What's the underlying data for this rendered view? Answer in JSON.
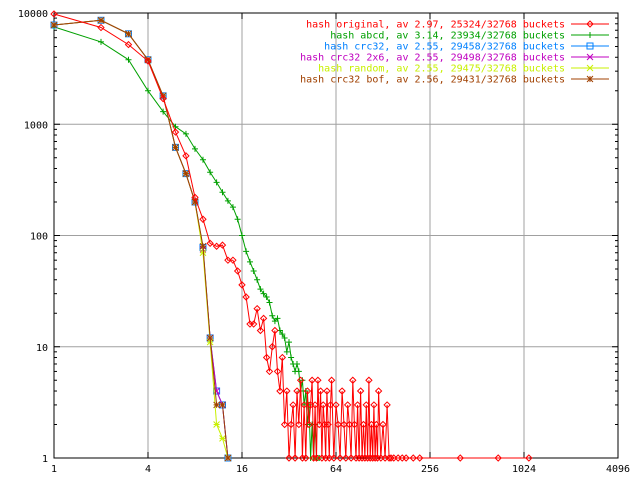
{
  "chart_data": {
    "type": "line",
    "title": "",
    "xlabel": "",
    "ylabel": "",
    "x_scale": "log2",
    "y_scale": "log10",
    "xlim": [
      1,
      4096
    ],
    "ylim": [
      1,
      10000
    ],
    "x_ticks": [
      {
        "value": 1,
        "label": "1"
      },
      {
        "value": 4,
        "label": "4"
      },
      {
        "value": 16,
        "label": "16"
      },
      {
        "value": 64,
        "label": "64"
      },
      {
        "value": 256,
        "label": "256"
      },
      {
        "value": 1024,
        "label": "1024"
      },
      {
        "value": 4096,
        "label": "4096"
      }
    ],
    "y_ticks": [
      {
        "value": 1,
        "label": "1"
      },
      {
        "value": 10,
        "label": "10"
      },
      {
        "value": 100,
        "label": "100"
      },
      {
        "value": 1000,
        "label": "1000"
      },
      {
        "value": 10000,
        "label": "10000"
      }
    ],
    "grid": true,
    "legend_position": "top-right",
    "series": [
      {
        "name": "hash original, av 2.97, 25324/32768 buckets",
        "color": "#ff0000",
        "marker": "diamond",
        "points": [
          [
            1,
            9800
          ],
          [
            2,
            7400
          ],
          [
            3,
            5200
          ],
          [
            4,
            3700
          ],
          [
            5,
            1700
          ],
          [
            6,
            850
          ],
          [
            7,
            520
          ],
          [
            8,
            220
          ],
          [
            9,
            140
          ],
          [
            10,
            85
          ],
          [
            11,
            80
          ],
          [
            12,
            82
          ],
          [
            13,
            60
          ],
          [
            14,
            60
          ],
          [
            15,
            48
          ],
          [
            16,
            36
          ],
          [
            17,
            28
          ],
          [
            18,
            16
          ],
          [
            19,
            16
          ],
          [
            20,
            22
          ],
          [
            21,
            14
          ],
          [
            22,
            18
          ],
          [
            23,
            8
          ],
          [
            24,
            6
          ],
          [
            25,
            10
          ],
          [
            26,
            14
          ],
          [
            27,
            6
          ],
          [
            28,
            4
          ],
          [
            29,
            8
          ],
          [
            30,
            2
          ],
          [
            31,
            4
          ],
          [
            32,
            1
          ],
          [
            33,
            2
          ],
          [
            34,
            3
          ],
          [
            35,
            1
          ],
          [
            36,
            4
          ],
          [
            37,
            2
          ],
          [
            38,
            5
          ],
          [
            39,
            1
          ],
          [
            40,
            3
          ],
          [
            41,
            1
          ],
          [
            42,
            4
          ],
          [
            43,
            2
          ],
          [
            44,
            3
          ],
          [
            45,
            5
          ],
          [
            46,
            1
          ],
          [
            47,
            3
          ],
          [
            48,
            1
          ],
          [
            49,
            5
          ],
          [
            50,
            2
          ],
          [
            51,
            4
          ],
          [
            52,
            1
          ],
          [
            53,
            3
          ],
          [
            54,
            2
          ],
          [
            55,
            1
          ],
          [
            56,
            4
          ],
          [
            57,
            2
          ],
          [
            58,
            1
          ],
          [
            59,
            3
          ],
          [
            60,
            5
          ],
          [
            62,
            1
          ],
          [
            64,
            3
          ],
          [
            66,
            2
          ],
          [
            68,
            1
          ],
          [
            70,
            4
          ],
          [
            72,
            2
          ],
          [
            74,
            1
          ],
          [
            76,
            3
          ],
          [
            78,
            2
          ],
          [
            80,
            1
          ],
          [
            82,
            5
          ],
          [
            84,
            2
          ],
          [
            86,
            1
          ],
          [
            88,
            3
          ],
          [
            90,
            1
          ],
          [
            92,
            4
          ],
          [
            94,
            1
          ],
          [
            96,
            2
          ],
          [
            98,
            1
          ],
          [
            100,
            3
          ],
          [
            102,
            1
          ],
          [
            104,
            5
          ],
          [
            106,
            1
          ],
          [
            108,
            2
          ],
          [
            110,
            1
          ],
          [
            112,
            3
          ],
          [
            114,
            1
          ],
          [
            116,
            2
          ],
          [
            118,
            1
          ],
          [
            120,
            4
          ],
          [
            124,
            1
          ],
          [
            128,
            2
          ],
          [
            132,
            1
          ],
          [
            136,
            3
          ],
          [
            140,
            1
          ],
          [
            144,
            1
          ],
          [
            150,
            1
          ],
          [
            160,
            1
          ],
          [
            170,
            1
          ],
          [
            180,
            1
          ],
          [
            200,
            1
          ],
          [
            220,
            1
          ],
          [
            400,
            1
          ],
          [
            700,
            1
          ],
          [
            1100,
            1
          ]
        ]
      },
      {
        "name": "hash abcd, av 3.14, 23934/32768 buckets",
        "color": "#00a000",
        "marker": "plus",
        "points": [
          [
            1,
            7500
          ],
          [
            2,
            5500
          ],
          [
            3,
            3800
          ],
          [
            4,
            2000
          ],
          [
            5,
            1300
          ],
          [
            6,
            950
          ],
          [
            7,
            820
          ],
          [
            8,
            600
          ],
          [
            9,
            480
          ],
          [
            10,
            370
          ],
          [
            11,
            300
          ],
          [
            12,
            245
          ],
          [
            13,
            205
          ],
          [
            14,
            180
          ],
          [
            15,
            140
          ],
          [
            16,
            100
          ],
          [
            17,
            72
          ],
          [
            18,
            58
          ],
          [
            19,
            48
          ],
          [
            20,
            40
          ],
          [
            21,
            33
          ],
          [
            22,
            30
          ],
          [
            23,
            28
          ],
          [
            24,
            25
          ],
          [
            25,
            19
          ],
          [
            26,
            17
          ],
          [
            27,
            18
          ],
          [
            28,
            14
          ],
          [
            29,
            13
          ],
          [
            30,
            12
          ],
          [
            31,
            9
          ],
          [
            32,
            11
          ],
          [
            33,
            8
          ],
          [
            34,
            7
          ],
          [
            35,
            6
          ],
          [
            36,
            7
          ],
          [
            37,
            6
          ],
          [
            38,
            4
          ],
          [
            39,
            5
          ],
          [
            40,
            3
          ],
          [
            41,
            4
          ],
          [
            42,
            2
          ],
          [
            43,
            3
          ],
          [
            44,
            1
          ],
          [
            45,
            2
          ],
          [
            46,
            1
          ],
          [
            47,
            2
          ],
          [
            48,
            1
          ],
          [
            49,
            1
          ],
          [
            50,
            1
          ]
        ]
      },
      {
        "name": "hash crc32, av 2.55, 29458/32768 buckets",
        "color": "#0080ff",
        "marker": "square",
        "points": [
          [
            1,
            7800
          ],
          [
            2,
            8600
          ],
          [
            3,
            6500
          ],
          [
            4,
            3800
          ],
          [
            5,
            1800
          ],
          [
            6,
            620
          ],
          [
            7,
            360
          ],
          [
            8,
            200
          ],
          [
            9,
            78
          ],
          [
            10,
            12
          ],
          [
            11,
            4
          ],
          [
            12,
            3
          ],
          [
            13,
            1
          ]
        ]
      },
      {
        "name": "hash crc32 2x6, av 2.55, 29498/32768 buckets",
        "color": "#c000c0",
        "marker": "cross",
        "points": [
          [
            1,
            7800
          ],
          [
            2,
            8600
          ],
          [
            3,
            6500
          ],
          [
            4,
            3800
          ],
          [
            5,
            1800
          ],
          [
            6,
            620
          ],
          [
            7,
            360
          ],
          [
            8,
            200
          ],
          [
            9,
            75
          ],
          [
            10,
            12
          ],
          [
            11,
            4
          ],
          [
            12,
            3
          ],
          [
            13,
            1
          ]
        ]
      },
      {
        "name": "hash random, av 2.55, 29475/32768 buckets",
        "color": "#c8f000",
        "marker": "star",
        "points": [
          [
            1,
            7800
          ],
          [
            2,
            8600
          ],
          [
            3,
            6500
          ],
          [
            4,
            3800
          ],
          [
            5,
            1800
          ],
          [
            6,
            620
          ],
          [
            7,
            360
          ],
          [
            8,
            200
          ],
          [
            9,
            70
          ],
          [
            10,
            11
          ],
          [
            11,
            2
          ],
          [
            12,
            1.5
          ],
          [
            13,
            1
          ]
        ]
      },
      {
        "name": "hash crc32 bof, av 2.56, 29431/32768 buckets",
        "color": "#a04000",
        "marker": "asterisk",
        "points": [
          [
            1,
            7800
          ],
          [
            2,
            8600
          ],
          [
            3,
            6500
          ],
          [
            4,
            3800
          ],
          [
            5,
            1800
          ],
          [
            6,
            620
          ],
          [
            7,
            360
          ],
          [
            8,
            200
          ],
          [
            9,
            80
          ],
          [
            10,
            12
          ],
          [
            11,
            3
          ],
          [
            12,
            3
          ],
          [
            13,
            1
          ]
        ]
      }
    ]
  }
}
